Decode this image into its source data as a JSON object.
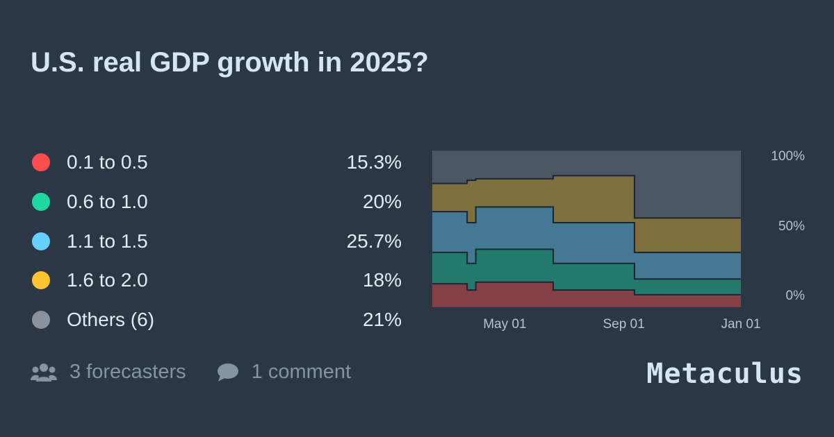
{
  "title": "U.S. real GDP growth in 2025?",
  "legend": [
    {
      "label": "0.1 to 0.5",
      "value": "15.3%",
      "color": "#ff4d4d"
    },
    {
      "label": "0.6 to 1.0",
      "value": "20%",
      "color": "#1fd8a0"
    },
    {
      "label": "1.1 to 1.5",
      "value": "25.7%",
      "color": "#66d0ff"
    },
    {
      "label": "1.6 to 2.0",
      "value": "18%",
      "color": "#ffc530"
    },
    {
      "label": "Others (6)",
      "value": "21%",
      "color": "#8a939d"
    }
  ],
  "footer": {
    "forecasters": "3 forecasters",
    "comments": "1 comment",
    "brand": "Metaculus",
    "forecasters_icon": "users-icon",
    "comments_icon": "comment-icon"
  },
  "chart_data": {
    "type": "area",
    "stacked": true,
    "step": true,
    "x": [
      "Feb 15",
      "Mar 23",
      "Apr 01",
      "May 01",
      "Jun 20",
      "Jul 01",
      "Aug 01",
      "Sep 01",
      "Sep 12",
      "Jan 01"
    ],
    "x_ticks": [
      "May 01",
      "Sep 01",
      "Jan 01"
    ],
    "y_ticks": [
      "100%",
      "50%",
      "0%"
    ],
    "ylim": [
      0,
      100
    ],
    "series": [
      {
        "name": "0.1 to 0.5",
        "color": "#843f47",
        "values": [
          15,
          11,
          16,
          16,
          11,
          11,
          11,
          11,
          8,
          8
        ]
      },
      {
        "name": "0.6 to 1.0",
        "color": "#237a6c",
        "values": [
          20,
          17,
          21,
          21,
          17,
          17,
          17,
          17,
          10,
          10
        ]
      },
      {
        "name": "1.1 to 1.5",
        "color": "#447893",
        "values": [
          26,
          26,
          27,
          27,
          26,
          26,
          26,
          26,
          17,
          17
        ]
      },
      {
        "name": "1.6 to 2.0",
        "color": "#7d703e",
        "values": [
          18,
          27,
          18,
          18,
          30,
          30,
          30,
          30,
          22,
          22
        ]
      },
      {
        "name": "Others (6)",
        "color": "#4b5663",
        "values": [
          21,
          19,
          18,
          18,
          16,
          16,
          16,
          16,
          43,
          43
        ]
      }
    ]
  }
}
